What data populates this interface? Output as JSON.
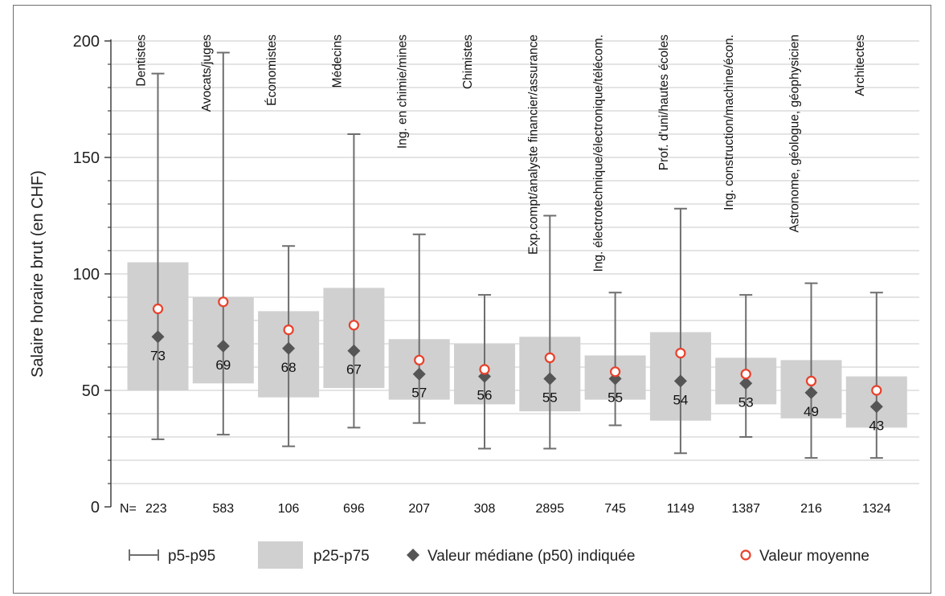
{
  "chart_data": {
    "type": "box",
    "ylabel": "Salaire horaire brut (en CHF)",
    "ylim": [
      0,
      200
    ],
    "yticks": [
      0,
      50,
      100,
      150,
      200
    ],
    "grid": true,
    "n_prefix": "N=",
    "categories": [
      "Dentistes",
      "Avocats/juges",
      "Économistes",
      "Médecins",
      "Ing. en chimie/mines",
      "Chimistes",
      "Exp.compt/analyste financier/assurance",
      "Ing. électrotechnique/électronique/télécom.",
      "Prof. d'uni/hautes écoles",
      "Ing. construction/machine/écon.",
      "Astronome, géologue, géophysicien",
      "Architectes"
    ],
    "series": [
      {
        "name": "p5-p95",
        "low": [
          29,
          31,
          26,
          34,
          36,
          25,
          25,
          35,
          23,
          30,
          21,
          21
        ],
        "high": [
          186,
          195,
          112,
          160,
          117,
          91,
          125,
          92,
          128,
          91,
          96,
          92
        ]
      },
      {
        "name": "p25-p75",
        "low": [
          50,
          53,
          47,
          51,
          46,
          44,
          41,
          46,
          37,
          44,
          38,
          34
        ],
        "high": [
          105,
          90,
          84,
          94,
          72,
          70,
          73,
          65,
          75,
          64,
          63,
          56
        ]
      },
      {
        "name": "Valeur médiane (p50) indiquée",
        "values": [
          73,
          69,
          68,
          67,
          57,
          56,
          55,
          55,
          54,
          53,
          49,
          43
        ]
      },
      {
        "name": "Valeur moyenne",
        "values": [
          85,
          88,
          76,
          78,
          63,
          59,
          64,
          58,
          66,
          57,
          54,
          50
        ]
      }
    ],
    "median_labels": [
      "73",
      "69",
      "68",
      "67",
      "57",
      "56",
      "55",
      "55",
      "54",
      "53",
      "49",
      "43"
    ],
    "n": [
      "223",
      "583",
      "106",
      "696",
      "207",
      "308",
      "2895",
      "745",
      "1149",
      "1387",
      "216",
      "1324"
    ],
    "legend": [
      "p5-p95",
      "p25-p75",
      "Valeur médiane (p50) indiquée",
      "Valeur moyenne"
    ],
    "legend_position": "bottom",
    "colors": {
      "box": "#d0d0d0",
      "whisker": "#6e6e6e",
      "median": "#555555",
      "mean": "#e8412b",
      "grid": "#d4d4d4"
    }
  }
}
